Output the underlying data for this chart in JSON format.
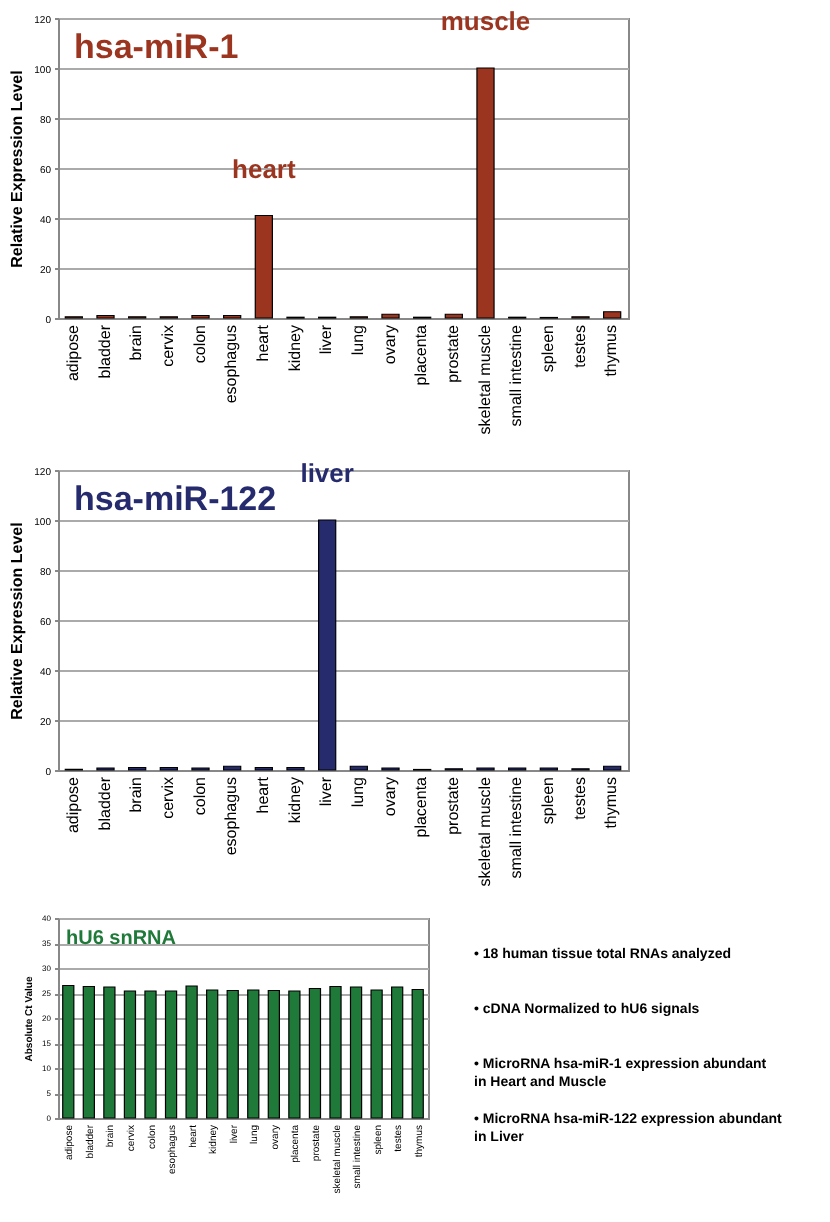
{
  "chart_data": [
    {
      "type": "bar",
      "title": "hsa-miR-1",
      "ylabel": "Relative Expression Level",
      "categories": [
        "adipose",
        "bladder",
        "brain",
        "cervix",
        "colon",
        "esophagus",
        "heart",
        "kidney",
        "liver",
        "lung",
        "ovary",
        "placenta",
        "prostate",
        "skeletal muscle",
        "small intestine",
        "spleen",
        "testes",
        "thymus"
      ],
      "series": [
        {
          "color": "#9b3520",
          "values": [
            0.5,
            1,
            0.5,
            0.5,
            1,
            1,
            41,
            0.3,
            0.3,
            0.5,
            1.5,
            0.3,
            1.5,
            100,
            0.3,
            0.2,
            0.5,
            2.5
          ]
        }
      ],
      "ylim": [
        0,
        120
      ],
      "yticks": [
        0,
        20,
        40,
        60,
        80,
        100,
        120
      ],
      "grid": "y",
      "annotations": [
        {
          "text": "heart",
          "x": "heart",
          "y": 41
        },
        {
          "text": "muscle",
          "x": "skeletal muscle",
          "y": 100
        }
      ]
    },
    {
      "type": "bar",
      "title": "hsa-miR-122",
      "ylabel": "Relative Expression Level",
      "categories": [
        "adipose",
        "bladder",
        "brain",
        "cervix",
        "colon",
        "esophagus",
        "heart",
        "kidney",
        "liver",
        "lung",
        "ovary",
        "placenta",
        "prostate",
        "skeletal muscle",
        "small intestine",
        "spleen",
        "testes",
        "thymus"
      ],
      "series": [
        {
          "color": "#262b6e",
          "values": [
            0.3,
            0.8,
            1,
            1,
            0.8,
            1.5,
            1,
            1,
            100,
            1.5,
            0.8,
            0.2,
            0.5,
            0.8,
            0.8,
            0.8,
            0.5,
            1.5
          ]
        }
      ],
      "ylim": [
        0,
        120
      ],
      "yticks": [
        0,
        20,
        40,
        60,
        80,
        100,
        120
      ],
      "grid": "y",
      "annotations": [
        {
          "text": "liver",
          "x": "liver",
          "y": 100
        }
      ]
    },
    {
      "type": "bar",
      "title": "hU6 snRNA",
      "ylabel": "Absolute Ct Value",
      "categories": [
        "adipose",
        "bladder",
        "brain",
        "cervix",
        "colon",
        "esophagus",
        "heart",
        "kidney",
        "liver",
        "lung",
        "ovary",
        "placenta",
        "prostate",
        "skeletal muscle",
        "small intestine",
        "spleen",
        "testes",
        "thymus"
      ],
      "series": [
        {
          "color": "#1f7a3a",
          "values": [
            26.5,
            26.3,
            26.2,
            25.4,
            25.4,
            25.4,
            26.4,
            25.6,
            25.5,
            25.6,
            25.5,
            25.4,
            25.9,
            26.3,
            26.2,
            25.6,
            26.2,
            25.7
          ]
        }
      ],
      "ylim": [
        0,
        40
      ],
      "yticks": [
        0,
        5,
        10,
        15,
        20,
        25,
        30,
        35,
        40
      ],
      "grid": "y"
    },
    {
      "type": "other",
      "annotations": [
        "• 18 human tissue total RNAs analyzed",
        "• cDNA Normalized to hU6 signals",
        "• MicroRNA hsa-miR-1 expression abundant in Heart and Muscle",
        "• MicroRNA hsa-miR-122 expression abundant in Liver"
      ]
    }
  ]
}
